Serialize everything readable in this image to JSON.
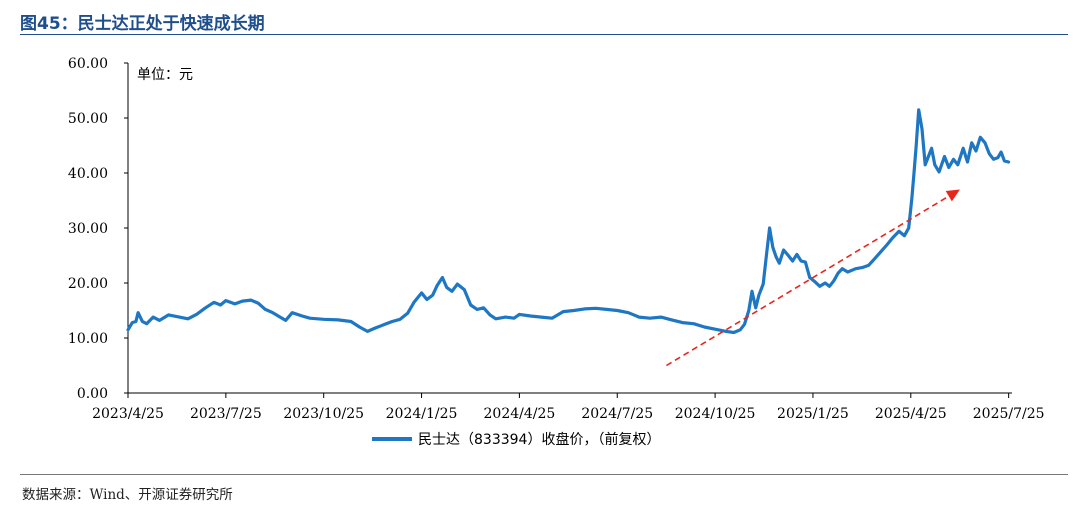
{
  "header": {
    "title": "图45：民士达正处于快速成长期"
  },
  "footer": {
    "source": "数据来源：Wind、开源证券研究所"
  },
  "colors": {
    "line": "#1f77c4",
    "arrow": "#e8261c",
    "title": "#1f4e8c"
  },
  "chart_data": {
    "type": "line",
    "title": "",
    "unit_label": "单位：元",
    "xlabel": "",
    "ylabel": "",
    "ylim": [
      0,
      60
    ],
    "y_ticks": [
      "0.00",
      "10.00",
      "20.00",
      "30.00",
      "40.00",
      "50.00",
      "60.00"
    ],
    "x_ticks": [
      "2023/4/25",
      "2023/7/25",
      "2023/10/25",
      "2024/1/25",
      "2024/4/25",
      "2024/7/25",
      "2024/10/25",
      "2025/1/25",
      "2025/4/25",
      "2025/7/25"
    ],
    "legend": {
      "label": "民士达（833394）收盘价，（前复权）",
      "position": "bottom-center"
    },
    "grid": false,
    "trend_arrow": {
      "from": [
        "2024/9/10",
        5
      ],
      "to": [
        "2025/6/10",
        37
      ],
      "style": "dashed",
      "color": "#e8261c"
    },
    "series": [
      {
        "name": "民士达（833394）收盘价，（前复权）",
        "points": [
          [
            "2023/4/25",
            11.5
          ],
          [
            "2023/4/29",
            12.8
          ],
          [
            "2023/5/2",
            13.0
          ],
          [
            "2023/5/4",
            14.6
          ],
          [
            "2023/5/8",
            13.0
          ],
          [
            "2023/5/12",
            12.6
          ],
          [
            "2023/5/18",
            13.8
          ],
          [
            "2023/5/24",
            13.2
          ],
          [
            "2023/6/2",
            14.2
          ],
          [
            "2023/6/12",
            13.8
          ],
          [
            "2023/6/20",
            13.5
          ],
          [
            "2023/6/28",
            14.3
          ],
          [
            "2023/7/6",
            15.5
          ],
          [
            "2023/7/14",
            16.5
          ],
          [
            "2023/7/20",
            16.0
          ],
          [
            "2023/7/25",
            16.8
          ],
          [
            "2023/8/3",
            16.2
          ],
          [
            "2023/8/10",
            16.7
          ],
          [
            "2023/8/18",
            16.9
          ],
          [
            "2023/8/25",
            16.3
          ],
          [
            "2023/9/1",
            15.2
          ],
          [
            "2023/9/8",
            14.6
          ],
          [
            "2023/9/14",
            13.9
          ],
          [
            "2023/9/20",
            13.2
          ],
          [
            "2023/9/26",
            14.6
          ],
          [
            "2023/10/5",
            14.0
          ],
          [
            "2023/10/12",
            13.6
          ],
          [
            "2023/10/25",
            13.4
          ],
          [
            "2023/11/8",
            13.3
          ],
          [
            "2023/11/20",
            13.0
          ],
          [
            "2023/11/28",
            12.0
          ],
          [
            "2023/12/5",
            11.2
          ],
          [
            "2023/12/12",
            11.8
          ],
          [
            "2023/12/20",
            12.4
          ],
          [
            "2023/12/28",
            13.0
          ],
          [
            "2024/1/5",
            13.4
          ],
          [
            "2024/1/12",
            14.5
          ],
          [
            "2024/1/18",
            16.5
          ],
          [
            "2024/1/25",
            18.2
          ],
          [
            "2024/1/30",
            17.0
          ],
          [
            "2024/2/5",
            17.8
          ],
          [
            "2024/2/9",
            19.5
          ],
          [
            "2024/2/14",
            21.0
          ],
          [
            "2024/2/18",
            19.2
          ],
          [
            "2024/2/23",
            18.5
          ],
          [
            "2024/2/28",
            19.8
          ],
          [
            "2024/3/4",
            18.8
          ],
          [
            "2024/3/10",
            16.0
          ],
          [
            "2024/3/16",
            15.2
          ],
          [
            "2024/3/22",
            15.5
          ],
          [
            "2024/3/28",
            14.2
          ],
          [
            "2024/4/3",
            13.5
          ],
          [
            "2024/4/12",
            13.8
          ],
          [
            "2024/4/20",
            13.6
          ],
          [
            "2024/4/25",
            14.3
          ],
          [
            "2024/5/5",
            14.0
          ],
          [
            "2024/5/15",
            13.8
          ],
          [
            "2024/5/25",
            13.6
          ],
          [
            "2024/6/5",
            14.8
          ],
          [
            "2024/6/15",
            15.0
          ],
          [
            "2024/6/25",
            15.3
          ],
          [
            "2024/7/5",
            15.4
          ],
          [
            "2024/7/15",
            15.2
          ],
          [
            "2024/7/25",
            15.0
          ],
          [
            "2024/8/5",
            14.6
          ],
          [
            "2024/8/15",
            13.8
          ],
          [
            "2024/8/25",
            13.6
          ],
          [
            "2024/9/5",
            13.8
          ],
          [
            "2024/9/15",
            13.3
          ],
          [
            "2024/9/25",
            12.8
          ],
          [
            "2024/10/5",
            12.6
          ],
          [
            "2024/10/15",
            12.0
          ],
          [
            "2024/10/25",
            11.6
          ],
          [
            "2024/11/5",
            11.2
          ],
          [
            "2024/11/12",
            11.0
          ],
          [
            "2024/11/18",
            11.5
          ],
          [
            "2024/11/22",
            12.5
          ],
          [
            "2024/11/26",
            15.0
          ],
          [
            "2024/11/29",
            18.5
          ],
          [
            "2024/12/2",
            15.5
          ],
          [
            "2024/12/5",
            17.8
          ],
          [
            "2024/12/9",
            19.8
          ],
          [
            "2024/12/12",
            25.0
          ],
          [
            "2024/12/15",
            30.0
          ],
          [
            "2024/12/18",
            26.5
          ],
          [
            "2024/12/21",
            24.8
          ],
          [
            "2024/12/24",
            23.6
          ],
          [
            "2024/12/28",
            26.0
          ],
          [
            "2025/1/2",
            25.0
          ],
          [
            "2025/1/6",
            24.0
          ],
          [
            "2025/1/10",
            25.2
          ],
          [
            "2025/1/14",
            24.0
          ],
          [
            "2025/1/18",
            23.8
          ],
          [
            "2025/1/22",
            21.0
          ],
          [
            "2025/1/27",
            20.2
          ],
          [
            "2025/2/1",
            19.4
          ],
          [
            "2025/2/6",
            20.0
          ],
          [
            "2025/2/10",
            19.4
          ],
          [
            "2025/2/14",
            20.4
          ],
          [
            "2025/2/18",
            21.8
          ],
          [
            "2025/2/22",
            22.6
          ],
          [
            "2025/2/27",
            22.0
          ],
          [
            "2025/3/4",
            22.6
          ],
          [
            "2025/3/10",
            22.8
          ],
          [
            "2025/3/16",
            23.2
          ],
          [
            "2025/3/22",
            24.5
          ],
          [
            "2025/3/28",
            25.8
          ],
          [
            "2025/4/3",
            27.0
          ],
          [
            "2025/4/8",
            28.2
          ],
          [
            "2025/4/14",
            29.4
          ],
          [
            "2025/4/19",
            28.6
          ],
          [
            "2025/4/23",
            30.0
          ],
          [
            "2025/4/26",
            35.5
          ],
          [
            "2025/4/28",
            40.0
          ],
          [
            "2025/4/30",
            45.0
          ],
          [
            "2025/5/2",
            51.5
          ],
          [
            "2025/5/5",
            48.0
          ],
          [
            "2025/5/8",
            41.5
          ],
          [
            "2025/5/11",
            43.0
          ],
          [
            "2025/5/14",
            44.5
          ],
          [
            "2025/5/17",
            41.5
          ],
          [
            "2025/5/21",
            40.2
          ],
          [
            "2025/5/26",
            43.0
          ],
          [
            "2025/5/30",
            41.0
          ],
          [
            "2025/6/4",
            42.5
          ],
          [
            "2025/6/8",
            41.5
          ],
          [
            "2025/6/13",
            44.5
          ],
          [
            "2025/6/17",
            42.0
          ],
          [
            "2025/6/21",
            45.5
          ],
          [
            "2025/6/25",
            44.0
          ],
          [
            "2025/6/29",
            46.5
          ],
          [
            "2025/7/3",
            45.5
          ],
          [
            "2025/7/7",
            43.5
          ],
          [
            "2025/7/11",
            42.5
          ],
          [
            "2025/7/15",
            42.8
          ],
          [
            "2025/7/18",
            43.8
          ],
          [
            "2025/7/21",
            42.2
          ],
          [
            "2025/7/25",
            42.0
          ]
        ]
      }
    ]
  }
}
